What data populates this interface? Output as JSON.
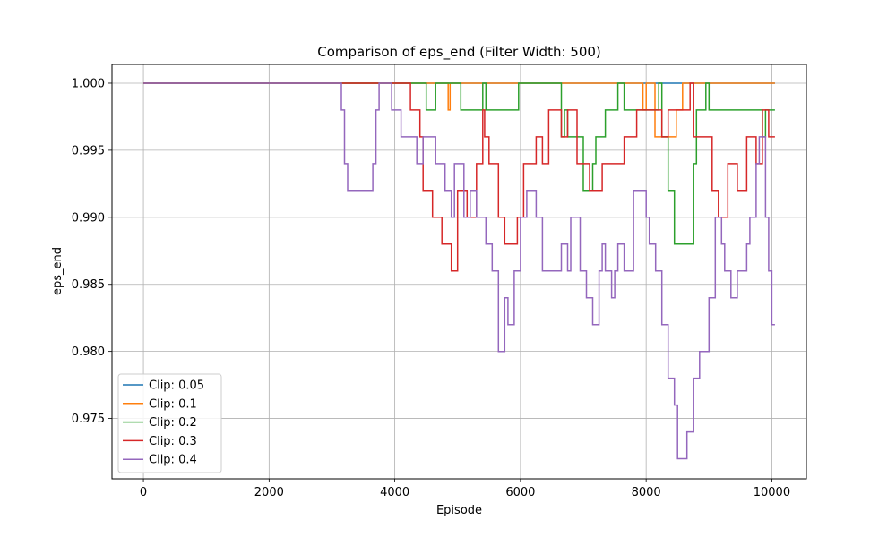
{
  "chart_data": {
    "type": "line",
    "title": "Comparison of eps_end (Filter Width: 500)",
    "xlabel": "Episode",
    "ylabel": "eps_end",
    "xlim": [
      -500,
      10550
    ],
    "ylim": [
      0.9705,
      1.0014
    ],
    "grid": true,
    "legend_position": "lower-left",
    "xticks": [
      {
        "v": 0,
        "label": "0"
      },
      {
        "v": 2000,
        "label": "2000"
      },
      {
        "v": 4000,
        "label": "4000"
      },
      {
        "v": 6000,
        "label": "6000"
      },
      {
        "v": 8000,
        "label": "8000"
      },
      {
        "v": 10000,
        "label": "10000"
      }
    ],
    "yticks": [
      {
        "v": 0.975,
        "label": "0.975"
      },
      {
        "v": 0.98,
        "label": "0.980"
      },
      {
        "v": 0.985,
        "label": "0.985"
      },
      {
        "v": 0.99,
        "label": "0.990"
      },
      {
        "v": 0.995,
        "label": "0.995"
      },
      {
        "v": 1.0,
        "label": "1.000"
      }
    ],
    "series": [
      {
        "name": "Clip: 0.05",
        "color": "#1f77b4",
        "points": [
          [
            0,
            1.0
          ],
          [
            10050,
            1.0
          ]
        ]
      },
      {
        "name": "Clip: 0.1",
        "color": "#ff7f0e",
        "points": [
          [
            0,
            1.0
          ],
          [
            4850,
            1.0
          ],
          [
            4850,
            0.998
          ],
          [
            4880,
            0.998
          ],
          [
            4880,
            1.0
          ],
          [
            7950,
            1.0
          ],
          [
            7950,
            0.998
          ],
          [
            8000,
            0.998
          ],
          [
            8000,
            1.0
          ],
          [
            8140,
            1.0
          ],
          [
            8140,
            0.996
          ],
          [
            8480,
            0.996
          ],
          [
            8480,
            0.998
          ],
          [
            8580,
            0.998
          ],
          [
            8580,
            1.0
          ],
          [
            10050,
            1.0
          ]
        ]
      },
      {
        "name": "Clip: 0.2",
        "color": "#2ca02c",
        "points": [
          [
            0,
            1.0
          ],
          [
            4500,
            1.0
          ],
          [
            4500,
            0.998
          ],
          [
            4650,
            0.998
          ],
          [
            4650,
            1.0
          ],
          [
            5050,
            1.0
          ],
          [
            5050,
            0.998
          ],
          [
            5400,
            0.998
          ],
          [
            5400,
            1.0
          ],
          [
            5450,
            1.0
          ],
          [
            5450,
            0.998
          ],
          [
            5970,
            0.998
          ],
          [
            5970,
            1.0
          ],
          [
            6650,
            1.0
          ],
          [
            6650,
            0.996
          ],
          [
            6700,
            0.996
          ],
          [
            6700,
            0.998
          ],
          [
            6750,
            0.998
          ],
          [
            6750,
            0.996
          ],
          [
            7000,
            0.996
          ],
          [
            7000,
            0.992
          ],
          [
            7150,
            0.992
          ],
          [
            7150,
            0.994
          ],
          [
            7200,
            0.994
          ],
          [
            7200,
            0.996
          ],
          [
            7350,
            0.996
          ],
          [
            7350,
            0.998
          ],
          [
            7550,
            0.998
          ],
          [
            7550,
            1.0
          ],
          [
            7650,
            1.0
          ],
          [
            7650,
            0.998
          ],
          [
            8200,
            0.998
          ],
          [
            8200,
            1.0
          ],
          [
            8250,
            1.0
          ],
          [
            8250,
            0.996
          ],
          [
            8350,
            0.996
          ],
          [
            8350,
            0.992
          ],
          [
            8450,
            0.992
          ],
          [
            8450,
            0.988
          ],
          [
            8750,
            0.988
          ],
          [
            8750,
            0.994
          ],
          [
            8800,
            0.994
          ],
          [
            8800,
            0.998
          ],
          [
            8950,
            0.998
          ],
          [
            8950,
            1.0
          ],
          [
            9000,
            1.0
          ],
          [
            9000,
            0.998
          ],
          [
            9850,
            0.998
          ],
          [
            9850,
            0.996
          ],
          [
            9900,
            0.996
          ],
          [
            9900,
            0.998
          ],
          [
            10050,
            0.998
          ]
        ]
      },
      {
        "name": "Clip: 0.3",
        "color": "#d62728",
        "points": [
          [
            0,
            1.0
          ],
          [
            4250,
            1.0
          ],
          [
            4250,
            0.998
          ],
          [
            4400,
            0.998
          ],
          [
            4400,
            0.996
          ],
          [
            4450,
            0.996
          ],
          [
            4450,
            0.992
          ],
          [
            4600,
            0.992
          ],
          [
            4600,
            0.99
          ],
          [
            4750,
            0.99
          ],
          [
            4750,
            0.988
          ],
          [
            4900,
            0.988
          ],
          [
            4900,
            0.986
          ],
          [
            5000,
            0.986
          ],
          [
            5000,
            0.992
          ],
          [
            5150,
            0.992
          ],
          [
            5150,
            0.99
          ],
          [
            5300,
            0.99
          ],
          [
            5300,
            0.994
          ],
          [
            5400,
            0.994
          ],
          [
            5400,
            0.998
          ],
          [
            5430,
            0.998
          ],
          [
            5430,
            0.996
          ],
          [
            5500,
            0.996
          ],
          [
            5500,
            0.994
          ],
          [
            5650,
            0.994
          ],
          [
            5650,
            0.99
          ],
          [
            5750,
            0.99
          ],
          [
            5750,
            0.988
          ],
          [
            5950,
            0.988
          ],
          [
            5950,
            0.99
          ],
          [
            6050,
            0.99
          ],
          [
            6050,
            0.994
          ],
          [
            6250,
            0.994
          ],
          [
            6250,
            0.996
          ],
          [
            6350,
            0.996
          ],
          [
            6350,
            0.994
          ],
          [
            6450,
            0.994
          ],
          [
            6450,
            0.998
          ],
          [
            6650,
            0.998
          ],
          [
            6650,
            0.996
          ],
          [
            6750,
            0.996
          ],
          [
            6750,
            0.998
          ],
          [
            6900,
            0.998
          ],
          [
            6900,
            0.994
          ],
          [
            7100,
            0.994
          ],
          [
            7100,
            0.992
          ],
          [
            7300,
            0.992
          ],
          [
            7300,
            0.994
          ],
          [
            7650,
            0.994
          ],
          [
            7650,
            0.996
          ],
          [
            7850,
            0.996
          ],
          [
            7850,
            0.998
          ],
          [
            8250,
            0.998
          ],
          [
            8250,
            0.996
          ],
          [
            8350,
            0.996
          ],
          [
            8350,
            0.998
          ],
          [
            8700,
            0.998
          ],
          [
            8700,
            1.0
          ],
          [
            8750,
            1.0
          ],
          [
            8750,
            0.996
          ],
          [
            9050,
            0.996
          ],
          [
            9050,
            0.992
          ],
          [
            9150,
            0.992
          ],
          [
            9150,
            0.99
          ],
          [
            9300,
            0.99
          ],
          [
            9300,
            0.994
          ],
          [
            9450,
            0.994
          ],
          [
            9450,
            0.992
          ],
          [
            9600,
            0.992
          ],
          [
            9600,
            0.996
          ],
          [
            9750,
            0.996
          ],
          [
            9750,
            0.994
          ],
          [
            9850,
            0.994
          ],
          [
            9850,
            0.998
          ],
          [
            9950,
            0.998
          ],
          [
            9950,
            0.996
          ],
          [
            10050,
            0.996
          ]
        ]
      },
      {
        "name": "Clip: 0.4",
        "color": "#9467bd",
        "points": [
          [
            0,
            1.0
          ],
          [
            3150,
            1.0
          ],
          [
            3150,
            0.998
          ],
          [
            3200,
            0.998
          ],
          [
            3200,
            0.994
          ],
          [
            3250,
            0.994
          ],
          [
            3250,
            0.992
          ],
          [
            3650,
            0.992
          ],
          [
            3650,
            0.994
          ],
          [
            3700,
            0.994
          ],
          [
            3700,
            0.998
          ],
          [
            3750,
            0.998
          ],
          [
            3750,
            1.0
          ],
          [
            3950,
            1.0
          ],
          [
            3950,
            0.998
          ],
          [
            4100,
            0.998
          ],
          [
            4100,
            0.996
          ],
          [
            4350,
            0.996
          ],
          [
            4350,
            0.994
          ],
          [
            4450,
            0.994
          ],
          [
            4450,
            0.996
          ],
          [
            4650,
            0.996
          ],
          [
            4650,
            0.994
          ],
          [
            4800,
            0.994
          ],
          [
            4800,
            0.992
          ],
          [
            4900,
            0.992
          ],
          [
            4900,
            0.99
          ],
          [
            4950,
            0.99
          ],
          [
            4950,
            0.994
          ],
          [
            5100,
            0.994
          ],
          [
            5100,
            0.99
          ],
          [
            5200,
            0.99
          ],
          [
            5200,
            0.992
          ],
          [
            5300,
            0.992
          ],
          [
            5300,
            0.99
          ],
          [
            5450,
            0.99
          ],
          [
            5450,
            0.988
          ],
          [
            5550,
            0.988
          ],
          [
            5550,
            0.986
          ],
          [
            5650,
            0.986
          ],
          [
            5650,
            0.98
          ],
          [
            5750,
            0.98
          ],
          [
            5750,
            0.984
          ],
          [
            5800,
            0.984
          ],
          [
            5800,
            0.982
          ],
          [
            5900,
            0.982
          ],
          [
            5900,
            0.986
          ],
          [
            6000,
            0.986
          ],
          [
            6000,
            0.99
          ],
          [
            6100,
            0.99
          ],
          [
            6100,
            0.992
          ],
          [
            6250,
            0.992
          ],
          [
            6250,
            0.99
          ],
          [
            6350,
            0.99
          ],
          [
            6350,
            0.986
          ],
          [
            6650,
            0.986
          ],
          [
            6650,
            0.988
          ],
          [
            6750,
            0.988
          ],
          [
            6750,
            0.986
          ],
          [
            6800,
            0.986
          ],
          [
            6800,
            0.99
          ],
          [
            6950,
            0.99
          ],
          [
            6950,
            0.986
          ],
          [
            7050,
            0.986
          ],
          [
            7050,
            0.984
          ],
          [
            7150,
            0.984
          ],
          [
            7150,
            0.982
          ],
          [
            7250,
            0.982
          ],
          [
            7250,
            0.986
          ],
          [
            7300,
            0.986
          ],
          [
            7300,
            0.988
          ],
          [
            7350,
            0.988
          ],
          [
            7350,
            0.986
          ],
          [
            7450,
            0.986
          ],
          [
            7450,
            0.984
          ],
          [
            7500,
            0.984
          ],
          [
            7500,
            0.986
          ],
          [
            7550,
            0.986
          ],
          [
            7550,
            0.988
          ],
          [
            7650,
            0.988
          ],
          [
            7650,
            0.986
          ],
          [
            7800,
            0.986
          ],
          [
            7800,
            0.992
          ],
          [
            8000,
            0.992
          ],
          [
            8000,
            0.99
          ],
          [
            8050,
            0.99
          ],
          [
            8050,
            0.988
          ],
          [
            8150,
            0.988
          ],
          [
            8150,
            0.986
          ],
          [
            8250,
            0.986
          ],
          [
            8250,
            0.982
          ],
          [
            8350,
            0.982
          ],
          [
            8350,
            0.978
          ],
          [
            8450,
            0.978
          ],
          [
            8450,
            0.976
          ],
          [
            8500,
            0.976
          ],
          [
            8500,
            0.972
          ],
          [
            8650,
            0.972
          ],
          [
            8650,
            0.974
          ],
          [
            8750,
            0.974
          ],
          [
            8750,
            0.978
          ],
          [
            8850,
            0.978
          ],
          [
            8850,
            0.98
          ],
          [
            9000,
            0.98
          ],
          [
            9000,
            0.984
          ],
          [
            9100,
            0.984
          ],
          [
            9100,
            0.99
          ],
          [
            9200,
            0.99
          ],
          [
            9200,
            0.988
          ],
          [
            9250,
            0.988
          ],
          [
            9250,
            0.986
          ],
          [
            9350,
            0.986
          ],
          [
            9350,
            0.984
          ],
          [
            9450,
            0.984
          ],
          [
            9450,
            0.986
          ],
          [
            9600,
            0.986
          ],
          [
            9600,
            0.988
          ],
          [
            9650,
            0.988
          ],
          [
            9650,
            0.99
          ],
          [
            9750,
            0.99
          ],
          [
            9750,
            0.994
          ],
          [
            9800,
            0.994
          ],
          [
            9800,
            0.996
          ],
          [
            9900,
            0.996
          ],
          [
            9900,
            0.99
          ],
          [
            9950,
            0.99
          ],
          [
            9950,
            0.986
          ],
          [
            10000,
            0.986
          ],
          [
            10000,
            0.982
          ],
          [
            10050,
            0.982
          ]
        ]
      }
    ]
  }
}
